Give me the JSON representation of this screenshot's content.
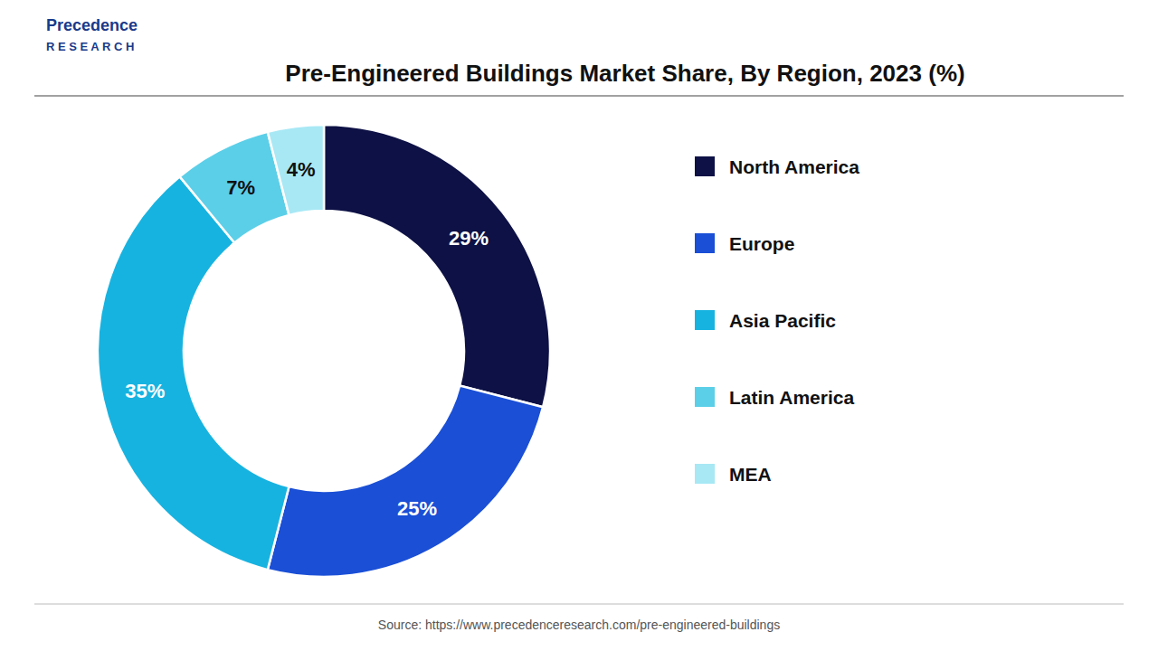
{
  "chart_data": {
    "type": "donut",
    "title": "Pre-Engineered Buildings Market Share, By Region, 2023 (%)",
    "categories": [
      "North America",
      "Europe",
      "Asia Pacific",
      "Latin America",
      "MEA"
    ],
    "values": [
      29,
      25,
      35,
      7,
      4
    ],
    "value_labels": [
      "29%",
      "25%",
      "35%",
      "7%",
      "4%"
    ],
    "data_labels": true,
    "colors": [
      "#0d1145",
      "#1a4fd6",
      "#17b3e0",
      "#5ccfe8",
      "#a8e8f5"
    ],
    "legend": "right",
    "annotations": [
      "Source: https://www.precedenceresearch.com/pre-engineered-buildings",
      "Precedence",
      "R E S E A R C H"
    ]
  }
}
